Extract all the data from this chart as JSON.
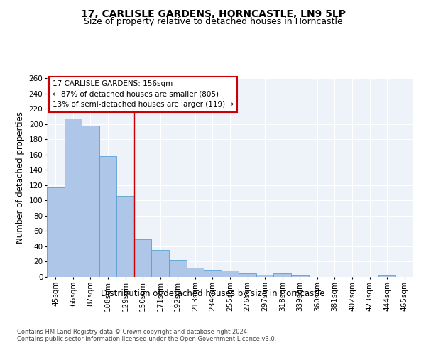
{
  "title": "17, CARLISLE GARDENS, HORNCASTLE, LN9 5LP",
  "subtitle": "Size of property relative to detached houses in Horncastle",
  "xlabel": "Distribution of detached houses by size in Horncastle",
  "ylabel": "Number of detached properties",
  "categories": [
    "45sqm",
    "66sqm",
    "87sqm",
    "108sqm",
    "129sqm",
    "150sqm",
    "171sqm",
    "192sqm",
    "213sqm",
    "234sqm",
    "255sqm",
    "276sqm",
    "297sqm",
    "318sqm",
    "339sqm",
    "360sqm",
    "381sqm",
    "402sqm",
    "423sqm",
    "444sqm",
    "465sqm"
  ],
  "values": [
    117,
    207,
    198,
    158,
    106,
    49,
    35,
    22,
    12,
    9,
    8,
    5,
    3,
    5,
    2,
    0,
    0,
    0,
    0,
    2,
    0
  ],
  "bar_color": "#aec6e8",
  "bar_edge_color": "#5a9fd4",
  "vline_index": 5,
  "vline_color": "#cc0000",
  "annotation_line1": "17 CARLISLE GARDENS: 156sqm",
  "annotation_line2": "← 87% of detached houses are smaller (805)",
  "annotation_line3": "13% of semi-detached houses are larger (119) →",
  "annotation_box_color": "#cc0000",
  "footer_line1": "Contains HM Land Registry data © Crown copyright and database right 2024.",
  "footer_line2": "Contains public sector information licensed under the Open Government Licence v3.0.",
  "ylim": [
    0,
    260
  ],
  "yticks": [
    0,
    20,
    40,
    60,
    80,
    100,
    120,
    140,
    160,
    180,
    200,
    220,
    240,
    260
  ],
  "bg_color": "#eef2f9",
  "grid_color": "#ffffff",
  "title_fontsize": 10,
  "subtitle_fontsize": 9,
  "axis_label_fontsize": 8.5,
  "tick_fontsize": 7.5,
  "annotation_fontsize": 7.5,
  "footer_fontsize": 6.0
}
